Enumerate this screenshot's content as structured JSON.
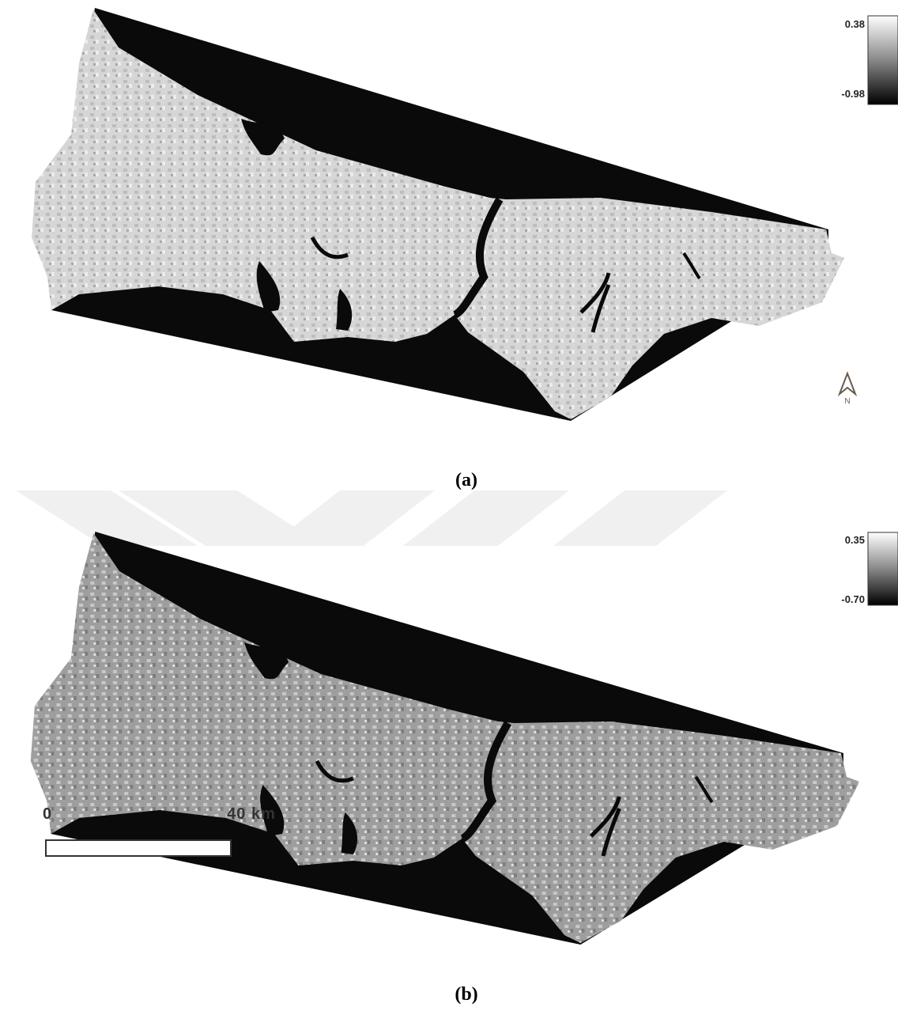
{
  "panels": [
    {
      "label": "(a)",
      "colorbar": {
        "max": "0.38",
        "min": "-0.98"
      },
      "north_arrow": "N"
    },
    {
      "label": "(b)",
      "colorbar": {
        "max": "0.35",
        "min": "-0.70"
      },
      "scale_bar": {
        "start": "0",
        "end": "40 km"
      }
    }
  ]
}
